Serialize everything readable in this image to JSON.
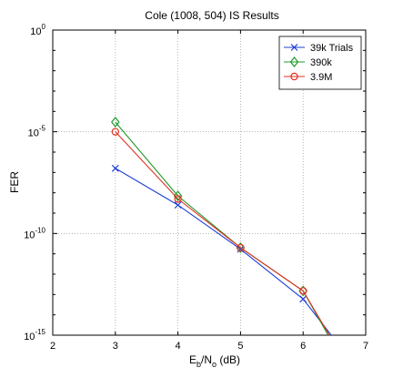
{
  "chart_data": {
    "type": "line",
    "title": "Cole (1008, 504) IS Results",
    "xlabel": {
      "main": "E",
      "sub1": "b",
      "mid": "/N",
      "sub2": "o",
      "tail": " (dB)"
    },
    "ylabel": "FER",
    "xlim": [
      2,
      7
    ],
    "ylim_log10": [
      -15,
      0
    ],
    "y_scale": "log",
    "grid": true,
    "x_ticks": [
      "2",
      "3",
      "4",
      "5",
      "6",
      "7"
    ],
    "y_ticks": [
      {
        "base": "10",
        "exp": "0"
      },
      {
        "base": "10",
        "exp": "-5"
      },
      {
        "base": "10",
        "exp": "-10"
      },
      {
        "base": "10",
        "exp": "-15"
      }
    ],
    "legend_position": "top-right",
    "series": [
      {
        "name": "39k Trials",
        "color": "#1f3fd6",
        "marker": "x",
        "x": [
          3,
          4,
          5,
          6,
          6.45
        ],
        "y": [
          "1.6e-7",
          "2.5e-9",
          "1.7e-11",
          "6e-14",
          "1e-15"
        ]
      },
      {
        "name": "390k",
        "color": "#1f9a2a",
        "marker": "diamond",
        "x": [
          3,
          4,
          5,
          6,
          6.4
        ],
        "y": [
          "3e-5",
          "7e-9",
          "2e-11",
          "1.5e-13",
          "1e-15"
        ]
      },
      {
        "name": "3.9M",
        "color": "#e0301e",
        "marker": "circle",
        "x": [
          3,
          4,
          5,
          6,
          6.42
        ],
        "y": [
          "1e-5",
          "5e-9",
          "2e-11",
          "1.5e-13",
          "1e-15"
        ]
      }
    ]
  }
}
